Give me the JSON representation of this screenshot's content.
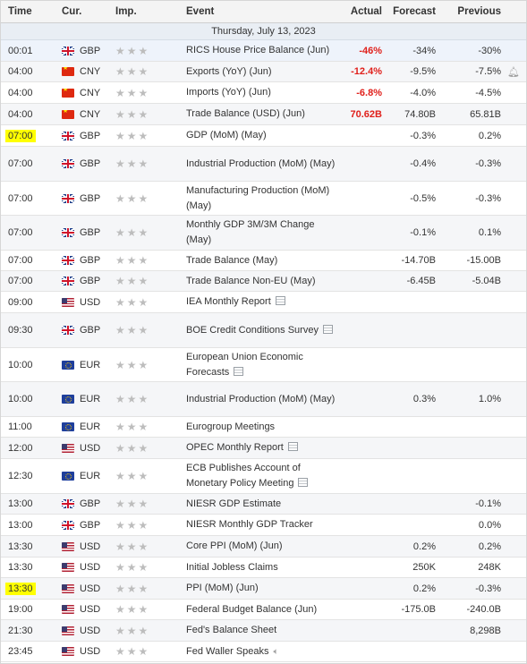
{
  "headers": {
    "time": "Time",
    "currency": "Cur.",
    "importance": "Imp.",
    "event": "Event",
    "actual": "Actual",
    "forecast": "Forecast",
    "previous": "Previous"
  },
  "date_label": "Thursday, July 13, 2023",
  "rows": [
    {
      "time": "00:01",
      "flag": "gb",
      "currency": "GBP",
      "event": "RICS House Price Balance (Jun)",
      "actual": "-46%",
      "forecast": "-34%",
      "previous": "-30%",
      "h": 24,
      "selected": true
    },
    {
      "time": "04:00",
      "flag": "cn",
      "currency": "CNY",
      "event": "Exports (YoY) (Jun)",
      "actual": "-12.4%",
      "forecast": "-9.5%",
      "previous": "-7.5%",
      "h": 23,
      "alert": true
    },
    {
      "time": "04:00",
      "flag": "cn",
      "currency": "CNY",
      "event": "Imports (YoY) (Jun)",
      "actual": "-6.8%",
      "forecast": "-4.0%",
      "previous": "-4.5%",
      "h": 24
    },
    {
      "time": "04:00",
      "flag": "cn",
      "currency": "CNY",
      "event": "Trade Balance (USD) (Jun)",
      "actual": "70.62B",
      "forecast": "74.80B",
      "previous": "65.81B",
      "h": 24
    },
    {
      "time": "07:00",
      "flag": "gb",
      "currency": "GBP",
      "event": "GDP (MoM) (May)",
      "actual": "",
      "forecast": "-0.3%",
      "previous": "0.2%",
      "h": 24,
      "highlight": true
    },
    {
      "time": "07:00",
      "flag": "gb",
      "currency": "GBP",
      "event": "Industrial Production (MoM) (May)",
      "actual": "",
      "forecast": "-0.4%",
      "previous": "-0.3%",
      "h": 39
    },
    {
      "time": "07:00",
      "flag": "gb",
      "currency": "GBP",
      "event": "Manufacturing Production (MoM) (May)",
      "actual": "",
      "forecast": "-0.5%",
      "previous": "-0.3%",
      "h": 38
    },
    {
      "time": "07:00",
      "flag": "gb",
      "currency": "GBP",
      "event": "Monthly GDP 3M/3M Change (May)",
      "actual": "",
      "forecast": "-0.1%",
      "previous": "0.1%",
      "h": 39
    },
    {
      "time": "07:00",
      "flag": "gb",
      "currency": "GBP",
      "event": "Trade Balance (May)",
      "actual": "",
      "forecast": "-14.70B",
      "previous": "-15.00B",
      "h": 23
    },
    {
      "time": "07:00",
      "flag": "gb",
      "currency": "GBP",
      "event": "Trade Balance Non-EU (May)",
      "actual": "",
      "forecast": "-6.45B",
      "previous": "-5.04B",
      "h": 23
    },
    {
      "time": "09:00",
      "flag": "us",
      "currency": "USD",
      "event": "IEA Monthly Report",
      "actual": "",
      "forecast": "",
      "previous": "",
      "h": 24,
      "icon": "doc"
    },
    {
      "time": "09:30",
      "flag": "gb",
      "currency": "GBP",
      "event": "BOE Credit Conditions Survey",
      "actual": "",
      "forecast": "",
      "previous": "",
      "h": 39,
      "icon": "doc"
    },
    {
      "time": "10:00",
      "flag": "eu",
      "currency": "EUR",
      "event": "European Union Economic Forecasts",
      "actual": "",
      "forecast": "",
      "previous": "",
      "h": 38,
      "icon": "doc"
    },
    {
      "time": "10:00",
      "flag": "eu",
      "currency": "EUR",
      "event": "Industrial Production (MoM) (May)",
      "actual": "",
      "forecast": "0.3%",
      "previous": "1.0%",
      "h": 39
    },
    {
      "time": "11:00",
      "flag": "eu",
      "currency": "EUR",
      "event": "Eurogroup Meetings",
      "actual": "",
      "forecast": "",
      "previous": "",
      "h": 23
    },
    {
      "time": "12:00",
      "flag": "us",
      "currency": "USD",
      "event": "OPEC Monthly Report",
      "actual": "",
      "forecast": "",
      "previous": "",
      "h": 24,
      "icon": "doc"
    },
    {
      "time": "12:30",
      "flag": "eu",
      "currency": "EUR",
      "event": "ECB Publishes Account of Monetary Policy Meeting",
      "actual": "",
      "forecast": "",
      "previous": "",
      "h": 39,
      "icon": "doc"
    },
    {
      "time": "13:00",
      "flag": "gb",
      "currency": "GBP",
      "event": "NIESR GDP Estimate",
      "actual": "",
      "forecast": "",
      "previous": "-0.1%",
      "h": 23
    },
    {
      "time": "13:00",
      "flag": "gb",
      "currency": "GBP",
      "event": "NIESR Monthly GDP Tracker",
      "actual": "",
      "forecast": "",
      "previous": "0.0%",
      "h": 24
    },
    {
      "time": "13:30",
      "flag": "us",
      "currency": "USD",
      "event": "Core PPI (MoM) (Jun)",
      "actual": "",
      "forecast": "0.2%",
      "previous": "0.2%",
      "h": 24
    },
    {
      "time": "13:30",
      "flag": "us",
      "currency": "USD",
      "event": "Initial Jobless Claims",
      "actual": "",
      "forecast": "250K",
      "previous": "248K",
      "h": 23
    },
    {
      "time": "13:30",
      "flag": "us",
      "currency": "USD",
      "event": "PPI (MoM) (Jun)",
      "actual": "",
      "forecast": "0.2%",
      "previous": "-0.3%",
      "h": 24,
      "highlight": true
    },
    {
      "time": "19:00",
      "flag": "us",
      "currency": "USD",
      "event": "Federal Budget Balance (Jun)",
      "actual": "",
      "forecast": "-175.0B",
      "previous": "-240.0B",
      "h": 23
    },
    {
      "time": "21:30",
      "flag": "us",
      "currency": "USD",
      "event": "Fed's Balance Sheet",
      "actual": "",
      "forecast": "",
      "previous": "8,298B",
      "h": 24
    },
    {
      "time": "23:45",
      "flag": "us",
      "currency": "USD",
      "event": "Fed Waller Speaks",
      "actual": "",
      "forecast": "",
      "previous": "",
      "h": 23,
      "icon": "speaker"
    }
  ]
}
